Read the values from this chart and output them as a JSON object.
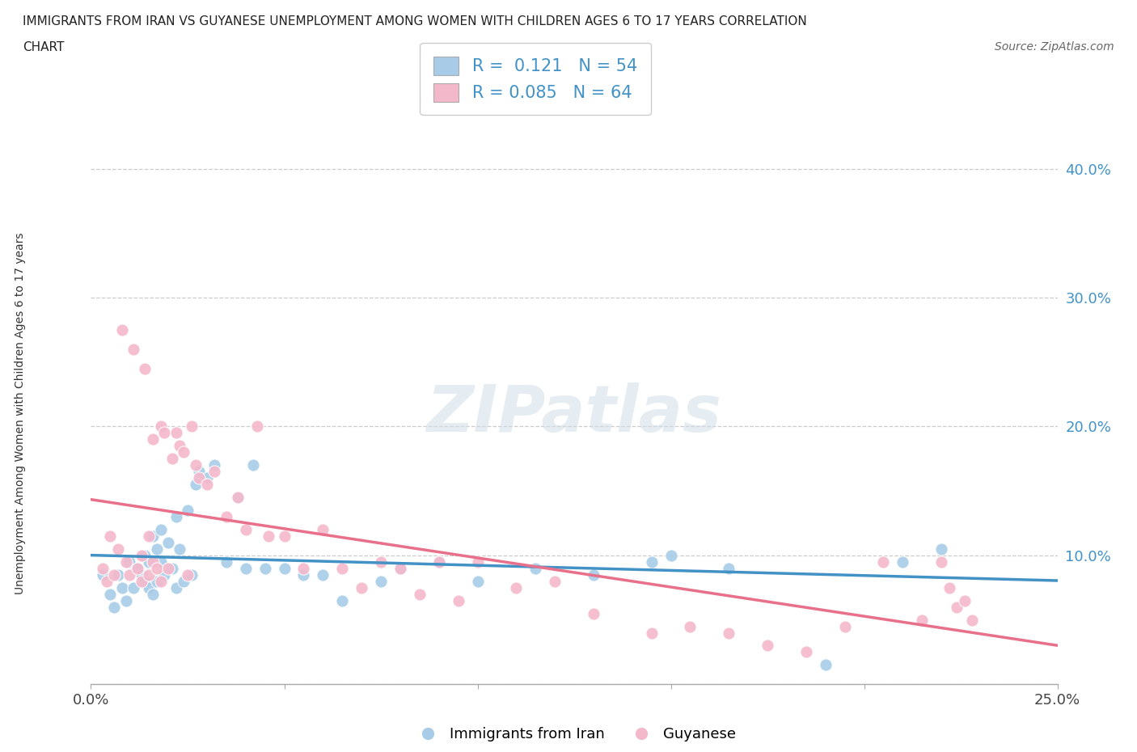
{
  "title_line1": "IMMIGRANTS FROM IRAN VS GUYANESE UNEMPLOYMENT AMONG WOMEN WITH CHILDREN AGES 6 TO 17 YEARS CORRELATION",
  "title_line2": "CHART",
  "source_text": "Source: ZipAtlas.com",
  "ylabel": "Unemployment Among Women with Children Ages 6 to 17 years",
  "xlim": [
    0.0,
    0.25
  ],
  "ylim": [
    0.0,
    0.42
  ],
  "xticks": [
    0.0,
    0.05,
    0.1,
    0.15,
    0.2,
    0.25
  ],
  "xticklabels": [
    "0.0%",
    "",
    "",
    "",
    "",
    "25.0%"
  ],
  "yticks": [
    0.0,
    0.1,
    0.2,
    0.3,
    0.4
  ],
  "yticklabels": [
    "",
    "10.0%",
    "20.0%",
    "30.0%",
    "40.0%"
  ],
  "blue_color": "#a8cce8",
  "pink_color": "#f4b8cb",
  "blue_line_color": "#4292c6",
  "pink_line_color": "#e8708a",
  "legend_R1": "0.121",
  "legend_N1": "54",
  "legend_R2": "0.085",
  "legend_N2": "64",
  "watermark": "ZIPatlas",
  "iran_x": [
    0.003,
    0.005,
    0.006,
    0.007,
    0.008,
    0.009,
    0.01,
    0.011,
    0.012,
    0.013,
    0.014,
    0.014,
    0.015,
    0.015,
    0.016,
    0.016,
    0.017,
    0.017,
    0.018,
    0.018,
    0.019,
    0.02,
    0.021,
    0.022,
    0.022,
    0.023,
    0.024,
    0.025,
    0.026,
    0.027,
    0.028,
    0.03,
    0.032,
    0.035,
    0.038,
    0.04,
    0.042,
    0.045,
    0.05,
    0.055,
    0.06,
    0.065,
    0.075,
    0.08,
    0.09,
    0.1,
    0.115,
    0.13,
    0.145,
    0.15,
    0.165,
    0.19,
    0.21,
    0.22
  ],
  "iran_y": [
    0.085,
    0.07,
    0.06,
    0.085,
    0.075,
    0.065,
    0.095,
    0.075,
    0.09,
    0.085,
    0.1,
    0.08,
    0.095,
    0.075,
    0.115,
    0.07,
    0.105,
    0.08,
    0.095,
    0.12,
    0.085,
    0.11,
    0.09,
    0.13,
    0.075,
    0.105,
    0.08,
    0.135,
    0.085,
    0.155,
    0.165,
    0.16,
    0.17,
    0.095,
    0.145,
    0.09,
    0.17,
    0.09,
    0.09,
    0.085,
    0.085,
    0.065,
    0.08,
    0.09,
    0.095,
    0.08,
    0.09,
    0.085,
    0.095,
    0.1,
    0.09,
    0.015,
    0.095,
    0.105
  ],
  "guyanese_x": [
    0.003,
    0.004,
    0.005,
    0.006,
    0.007,
    0.008,
    0.009,
    0.01,
    0.011,
    0.012,
    0.013,
    0.013,
    0.014,
    0.015,
    0.015,
    0.016,
    0.016,
    0.017,
    0.018,
    0.018,
    0.019,
    0.02,
    0.021,
    0.022,
    0.023,
    0.024,
    0.025,
    0.026,
    0.027,
    0.028,
    0.03,
    0.032,
    0.035,
    0.038,
    0.04,
    0.043,
    0.046,
    0.05,
    0.055,
    0.06,
    0.065,
    0.07,
    0.075,
    0.08,
    0.085,
    0.09,
    0.095,
    0.1,
    0.11,
    0.12,
    0.13,
    0.145,
    0.155,
    0.165,
    0.175,
    0.185,
    0.195,
    0.205,
    0.215,
    0.22,
    0.222,
    0.224,
    0.226,
    0.228
  ],
  "guyanese_y": [
    0.09,
    0.08,
    0.115,
    0.085,
    0.105,
    0.275,
    0.095,
    0.085,
    0.26,
    0.09,
    0.1,
    0.08,
    0.245,
    0.115,
    0.085,
    0.095,
    0.19,
    0.09,
    0.2,
    0.08,
    0.195,
    0.09,
    0.175,
    0.195,
    0.185,
    0.18,
    0.085,
    0.2,
    0.17,
    0.16,
    0.155,
    0.165,
    0.13,
    0.145,
    0.12,
    0.2,
    0.115,
    0.115,
    0.09,
    0.12,
    0.09,
    0.075,
    0.095,
    0.09,
    0.07,
    0.095,
    0.065,
    0.095,
    0.075,
    0.08,
    0.055,
    0.04,
    0.045,
    0.04,
    0.03,
    0.025,
    0.045,
    0.095,
    0.05,
    0.095,
    0.075,
    0.06,
    0.065,
    0.05
  ]
}
